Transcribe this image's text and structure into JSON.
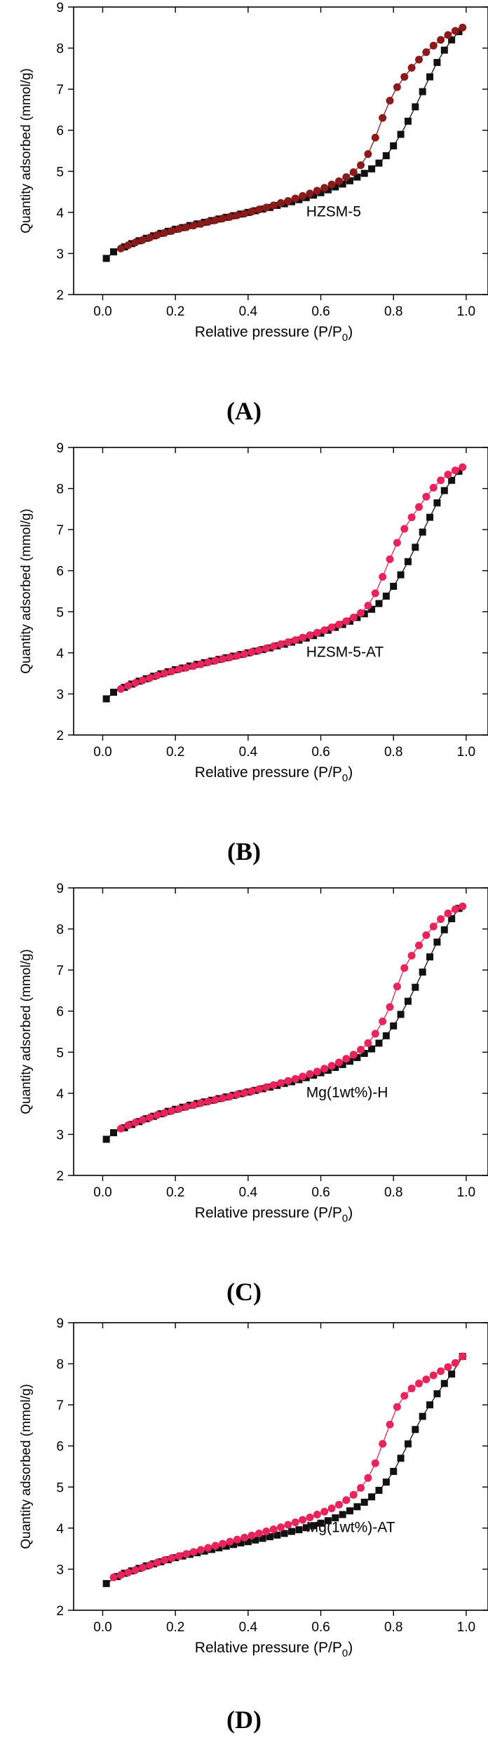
{
  "chart_data": [
    {
      "type": "scatter",
      "panel_label": "(A)",
      "annotation": "HZSM-5",
      "xlabel_main": "Relative pressure (P/P",
      "xlabel_sub": "0",
      "xlabel_end": ")",
      "ylabel": "Quantity adsorbed (mmol/g)",
      "xlim": [
        -0.08,
        1.06
      ],
      "ylim": [
        2,
        9
      ],
      "xticks": [
        0.0,
        0.2,
        0.4,
        0.6,
        0.8,
        1.0
      ],
      "xtick_labels": [
        "0.0",
        "0.2",
        "0.4",
        "0.6",
        "0.8",
        "1.0"
      ],
      "yticks": [
        2,
        3,
        4,
        5,
        6,
        7,
        8,
        9
      ],
      "ytick_labels": [
        "2",
        "3",
        "4",
        "5",
        "6",
        "7",
        "8",
        "9"
      ],
      "series": [
        {
          "name": "adsorption",
          "marker": "square",
          "color": "#111111",
          "x": [
            0.01,
            0.03,
            0.06,
            0.08,
            0.1,
            0.12,
            0.14,
            0.16,
            0.18,
            0.2,
            0.22,
            0.24,
            0.26,
            0.28,
            0.3,
            0.32,
            0.34,
            0.36,
            0.38,
            0.4,
            0.42,
            0.44,
            0.46,
            0.48,
            0.5,
            0.52,
            0.54,
            0.56,
            0.58,
            0.6,
            0.62,
            0.64,
            0.66,
            0.68,
            0.7,
            0.72,
            0.74,
            0.76,
            0.78,
            0.8,
            0.82,
            0.84,
            0.86,
            0.88,
            0.9,
            0.92,
            0.94,
            0.96,
            0.98
          ],
          "y": [
            2.88,
            3.04,
            3.16,
            3.24,
            3.31,
            3.37,
            3.43,
            3.49,
            3.54,
            3.59,
            3.63,
            3.68,
            3.72,
            3.76,
            3.8,
            3.84,
            3.88,
            3.92,
            3.96,
            4.0,
            4.04,
            4.08,
            4.12,
            4.17,
            4.21,
            4.26,
            4.31,
            4.36,
            4.42,
            4.48,
            4.55,
            4.62,
            4.69,
            4.77,
            4.86,
            4.95,
            5.06,
            5.2,
            5.38,
            5.62,
            5.9,
            6.22,
            6.57,
            6.94,
            7.3,
            7.65,
            7.95,
            8.2,
            8.4
          ]
        },
        {
          "name": "desorption",
          "marker": "circle",
          "color": "#8B1A1A",
          "x": [
            0.99,
            0.97,
            0.95,
            0.93,
            0.91,
            0.89,
            0.87,
            0.85,
            0.83,
            0.81,
            0.79,
            0.77,
            0.75,
            0.73,
            0.71,
            0.69,
            0.67,
            0.65,
            0.63,
            0.61,
            0.59,
            0.57,
            0.55,
            0.53,
            0.51,
            0.49,
            0.47,
            0.45,
            0.43,
            0.41,
            0.39,
            0.37,
            0.35,
            0.33,
            0.31,
            0.29,
            0.27,
            0.25,
            0.23,
            0.21,
            0.19,
            0.17,
            0.15,
            0.13,
            0.11,
            0.09,
            0.07,
            0.05
          ],
          "y": [
            8.5,
            8.42,
            8.32,
            8.2,
            8.06,
            7.9,
            7.72,
            7.52,
            7.3,
            7.05,
            6.72,
            6.3,
            5.82,
            5.42,
            5.15,
            4.98,
            4.86,
            4.76,
            4.68,
            4.6,
            4.53,
            4.46,
            4.4,
            4.34,
            4.28,
            4.23,
            4.17,
            4.12,
            4.07,
            4.02,
            3.97,
            3.93,
            3.89,
            3.85,
            3.81,
            3.77,
            3.72,
            3.68,
            3.64,
            3.6,
            3.55,
            3.5,
            3.45,
            3.39,
            3.33,
            3.27,
            3.2,
            3.12
          ]
        }
      ]
    },
    {
      "type": "scatter",
      "panel_label": "(B)",
      "annotation": "HZSM-5-AT",
      "xlabel_main": "Relative pressure (P/P",
      "xlabel_sub": "0",
      "xlabel_end": ")",
      "ylabel": "Quantity adsorbed (mmol/g)",
      "xlim": [
        -0.08,
        1.06
      ],
      "ylim": [
        2,
        9
      ],
      "xticks": [
        0.0,
        0.2,
        0.4,
        0.6,
        0.8,
        1.0
      ],
      "xtick_labels": [
        "0.0",
        "0.2",
        "0.4",
        "0.6",
        "0.8",
        "1.0"
      ],
      "yticks": [
        2,
        3,
        4,
        5,
        6,
        7,
        8,
        9
      ],
      "ytick_labels": [
        "2",
        "3",
        "4",
        "5",
        "6",
        "7",
        "8",
        "9"
      ],
      "series": [
        {
          "name": "adsorption",
          "marker": "square",
          "color": "#111111",
          "x": [
            0.01,
            0.03,
            0.06,
            0.08,
            0.1,
            0.12,
            0.14,
            0.16,
            0.18,
            0.2,
            0.22,
            0.24,
            0.26,
            0.28,
            0.3,
            0.32,
            0.34,
            0.36,
            0.38,
            0.4,
            0.42,
            0.44,
            0.46,
            0.48,
            0.5,
            0.52,
            0.54,
            0.56,
            0.58,
            0.6,
            0.62,
            0.64,
            0.66,
            0.68,
            0.7,
            0.72,
            0.74,
            0.76,
            0.78,
            0.8,
            0.82,
            0.84,
            0.86,
            0.88,
            0.9,
            0.92,
            0.94,
            0.96,
            0.98
          ],
          "y": [
            2.88,
            3.04,
            3.16,
            3.24,
            3.31,
            3.37,
            3.43,
            3.49,
            3.54,
            3.59,
            3.63,
            3.68,
            3.72,
            3.76,
            3.8,
            3.84,
            3.88,
            3.92,
            3.96,
            4.0,
            4.04,
            4.08,
            4.12,
            4.17,
            4.21,
            4.26,
            4.31,
            4.36,
            4.42,
            4.48,
            4.55,
            4.62,
            4.69,
            4.77,
            4.86,
            4.95,
            5.06,
            5.2,
            5.38,
            5.62,
            5.9,
            6.22,
            6.57,
            6.94,
            7.3,
            7.65,
            7.95,
            8.2,
            8.42
          ]
        },
        {
          "name": "desorption",
          "marker": "circle",
          "color": "#E8245A",
          "x": [
            0.99,
            0.97,
            0.95,
            0.93,
            0.91,
            0.89,
            0.87,
            0.85,
            0.83,
            0.81,
            0.79,
            0.77,
            0.75,
            0.73,
            0.71,
            0.69,
            0.67,
            0.65,
            0.63,
            0.61,
            0.59,
            0.57,
            0.55,
            0.53,
            0.51,
            0.49,
            0.47,
            0.45,
            0.43,
            0.41,
            0.39,
            0.37,
            0.35,
            0.33,
            0.31,
            0.29,
            0.27,
            0.25,
            0.23,
            0.21,
            0.19,
            0.17,
            0.15,
            0.13,
            0.11,
            0.09,
            0.07,
            0.05
          ],
          "y": [
            8.52,
            8.44,
            8.34,
            8.2,
            8.02,
            7.8,
            7.55,
            7.3,
            7.02,
            6.68,
            6.28,
            5.85,
            5.45,
            5.15,
            4.97,
            4.86,
            4.77,
            4.69,
            4.62,
            4.55,
            4.49,
            4.43,
            4.37,
            4.31,
            4.26,
            4.21,
            4.16,
            4.11,
            4.06,
            4.02,
            3.97,
            3.93,
            3.89,
            3.85,
            3.81,
            3.77,
            3.72,
            3.68,
            3.64,
            3.6,
            3.55,
            3.5,
            3.45,
            3.39,
            3.33,
            3.27,
            3.2,
            3.12
          ]
        }
      ]
    },
    {
      "type": "scatter",
      "panel_label": "(C)",
      "annotation": "Mg(1wt%)-H",
      "xlabel_main": "Relative pressure (P/P",
      "xlabel_sub": "0",
      "xlabel_end": ")",
      "ylabel": "Quantity adsorbed (mmol/g)",
      "xlim": [
        -0.08,
        1.06
      ],
      "ylim": [
        2,
        9
      ],
      "xticks": [
        0.0,
        0.2,
        0.4,
        0.6,
        0.8,
        1.0
      ],
      "xtick_labels": [
        "0.0",
        "0.2",
        "0.4",
        "0.6",
        "0.8",
        "1.0"
      ],
      "yticks": [
        2,
        3,
        4,
        5,
        6,
        7,
        8,
        9
      ],
      "ytick_labels": [
        "2",
        "3",
        "4",
        "5",
        "6",
        "7",
        "8",
        "9"
      ],
      "series": [
        {
          "name": "adsorption",
          "marker": "square",
          "color": "#111111",
          "x": [
            0.01,
            0.03,
            0.06,
            0.08,
            0.1,
            0.12,
            0.14,
            0.16,
            0.18,
            0.2,
            0.22,
            0.24,
            0.26,
            0.28,
            0.3,
            0.32,
            0.34,
            0.36,
            0.38,
            0.4,
            0.42,
            0.44,
            0.46,
            0.48,
            0.5,
            0.52,
            0.54,
            0.56,
            0.58,
            0.6,
            0.62,
            0.64,
            0.66,
            0.68,
            0.7,
            0.72,
            0.74,
            0.76,
            0.78,
            0.8,
            0.82,
            0.84,
            0.86,
            0.88,
            0.9,
            0.92,
            0.94,
            0.96,
            0.98
          ],
          "y": [
            2.88,
            3.04,
            3.16,
            3.24,
            3.31,
            3.38,
            3.44,
            3.5,
            3.56,
            3.61,
            3.66,
            3.71,
            3.75,
            3.79,
            3.83,
            3.87,
            3.91,
            3.95,
            3.99,
            4.03,
            4.07,
            4.11,
            4.15,
            4.19,
            4.24,
            4.28,
            4.33,
            4.38,
            4.44,
            4.5,
            4.56,
            4.63,
            4.7,
            4.78,
            4.87,
            4.97,
            5.08,
            5.22,
            5.4,
            5.64,
            5.92,
            6.24,
            6.58,
            6.95,
            7.32,
            7.68,
            7.98,
            8.25,
            8.5
          ]
        },
        {
          "name": "desorption",
          "marker": "circle",
          "color": "#E8245A",
          "x": [
            0.99,
            0.97,
            0.95,
            0.93,
            0.91,
            0.89,
            0.87,
            0.85,
            0.83,
            0.81,
            0.79,
            0.77,
            0.75,
            0.73,
            0.71,
            0.69,
            0.67,
            0.65,
            0.63,
            0.61,
            0.59,
            0.57,
            0.55,
            0.53,
            0.51,
            0.49,
            0.47,
            0.45,
            0.43,
            0.41,
            0.39,
            0.37,
            0.35,
            0.33,
            0.31,
            0.29,
            0.27,
            0.25,
            0.23,
            0.21,
            0.19,
            0.17,
            0.15,
            0.13,
            0.11,
            0.09,
            0.07,
            0.05
          ],
          "y": [
            8.55,
            8.48,
            8.38,
            8.24,
            8.06,
            7.85,
            7.6,
            7.35,
            7.05,
            6.6,
            6.1,
            5.75,
            5.45,
            5.22,
            5.06,
            4.94,
            4.84,
            4.75,
            4.67,
            4.6,
            4.53,
            4.47,
            4.41,
            4.35,
            4.3,
            4.25,
            4.2,
            4.15,
            4.1,
            4.05,
            4.01,
            3.97,
            3.92,
            3.88,
            3.84,
            3.8,
            3.76,
            3.71,
            3.67,
            3.62,
            3.57,
            3.52,
            3.47,
            3.41,
            3.35,
            3.29,
            3.22,
            3.14
          ]
        }
      ]
    },
    {
      "type": "scatter",
      "panel_label": "(D)",
      "annotation": "Mg(1wt%)-AT",
      "xlabel_main": "Relative pressure (P/P",
      "xlabel_sub": "0",
      "xlabel_end": ")",
      "ylabel": "Quantity adsorbed (mmol/g)",
      "xlim": [
        -0.08,
        1.06
      ],
      "ylim": [
        2,
        9
      ],
      "xticks": [
        0.0,
        0.2,
        0.4,
        0.6,
        0.8,
        1.0
      ],
      "xtick_labels": [
        "0.0",
        "0.2",
        "0.4",
        "0.6",
        "0.8",
        "1.0"
      ],
      "yticks": [
        2,
        3,
        4,
        5,
        6,
        7,
        8,
        9
      ],
      "ytick_labels": [
        "2",
        "3",
        "4",
        "5",
        "6",
        "7",
        "8",
        "9"
      ],
      "series": [
        {
          "name": "adsorption",
          "marker": "square",
          "color": "#111111",
          "x": [
            0.01,
            0.04,
            0.06,
            0.08,
            0.1,
            0.12,
            0.14,
            0.16,
            0.18,
            0.2,
            0.22,
            0.24,
            0.26,
            0.28,
            0.3,
            0.32,
            0.34,
            0.36,
            0.38,
            0.4,
            0.42,
            0.44,
            0.46,
            0.48,
            0.5,
            0.52,
            0.54,
            0.56,
            0.58,
            0.6,
            0.62,
            0.64,
            0.66,
            0.68,
            0.7,
            0.72,
            0.74,
            0.76,
            0.78,
            0.8,
            0.82,
            0.84,
            0.86,
            0.88,
            0.9,
            0.92,
            0.94,
            0.96,
            0.99
          ],
          "y": [
            2.65,
            2.82,
            2.9,
            2.96,
            3.02,
            3.08,
            3.13,
            3.18,
            3.23,
            3.28,
            3.32,
            3.36,
            3.4,
            3.44,
            3.48,
            3.52,
            3.56,
            3.6,
            3.64,
            3.67,
            3.71,
            3.75,
            3.79,
            3.83,
            3.87,
            3.92,
            3.96,
            4.01,
            4.06,
            4.12,
            4.18,
            4.25,
            4.33,
            4.42,
            4.52,
            4.63,
            4.76,
            4.92,
            5.12,
            5.38,
            5.7,
            6.05,
            6.4,
            6.72,
            7.0,
            7.27,
            7.52,
            7.75,
            8.18
          ]
        },
        {
          "name": "desorption",
          "marker": "circle",
          "color": "#E8245A",
          "x": [
            0.99,
            0.97,
            0.95,
            0.93,
            0.91,
            0.89,
            0.87,
            0.85,
            0.83,
            0.81,
            0.79,
            0.77,
            0.75,
            0.73,
            0.71,
            0.69,
            0.67,
            0.65,
            0.63,
            0.61,
            0.59,
            0.57,
            0.55,
            0.53,
            0.51,
            0.49,
            0.47,
            0.45,
            0.43,
            0.41,
            0.39,
            0.37,
            0.35,
            0.33,
            0.31,
            0.29,
            0.27,
            0.25,
            0.23,
            0.21,
            0.19,
            0.17,
            0.15,
            0.13,
            0.11,
            0.09,
            0.07,
            0.05,
            0.03
          ],
          "y": [
            8.18,
            8.02,
            7.92,
            7.82,
            7.72,
            7.62,
            7.52,
            7.4,
            7.22,
            6.95,
            6.52,
            6.05,
            5.58,
            5.22,
            4.98,
            4.81,
            4.68,
            4.57,
            4.48,
            4.4,
            4.33,
            4.26,
            4.2,
            4.14,
            4.08,
            4.02,
            3.97,
            3.92,
            3.87,
            3.82,
            3.77,
            3.72,
            3.67,
            3.62,
            3.57,
            3.52,
            3.47,
            3.42,
            3.37,
            3.32,
            3.27,
            3.22,
            3.16,
            3.1,
            3.04,
            2.98,
            2.92,
            2.86,
            2.8
          ]
        }
      ]
    }
  ]
}
